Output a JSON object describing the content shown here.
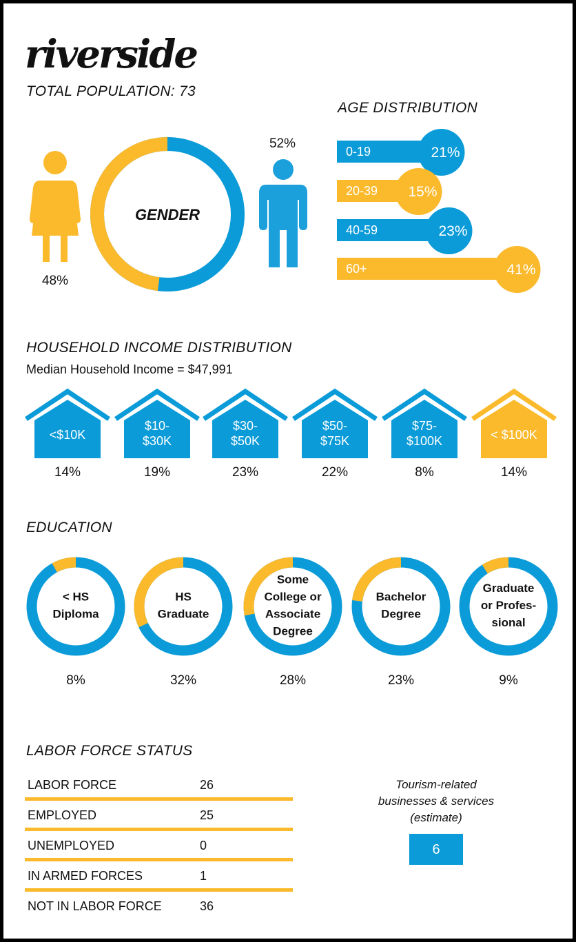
{
  "title": "riverside",
  "total_population_label": "TOTAL POPULATION: 73",
  "colors": {
    "blue": "#0a9bd8",
    "yellow": "#fbb92c"
  },
  "chart_data": [
    {
      "type": "pie",
      "title": "GENDER",
      "slices": [
        {
          "label": "female",
          "value": 48,
          "display": "48%",
          "color": "#fbb92c",
          "icon": "woman-icon"
        },
        {
          "label": "male",
          "value": 52,
          "display": "52%",
          "color": "#0a9bd8",
          "icon": "man-icon"
        }
      ]
    },
    {
      "type": "bar",
      "title": "AGE DISTRIBUTION",
      "categories": [
        "0-19",
        "20-39",
        "40-59",
        "60+"
      ],
      "values": [
        21,
        15,
        23,
        41
      ],
      "labels": [
        "21%",
        "15%",
        "23%",
        "41%"
      ],
      "colors": [
        "#0a9bd8",
        "#fbb92c",
        "#0a9bd8",
        "#fbb92c"
      ]
    },
    {
      "type": "bar",
      "title": "HOUSEHOLD INCOME DISTRIBUTION",
      "subtitle": "Median Household Income = $47,991",
      "categories": [
        "<$10K",
        "$10-\n$30K",
        "$30-\n$50K",
        "$50-\n$75K",
        "$75-\n$100K",
        "< $100K"
      ],
      "values": [
        14,
        19,
        23,
        22,
        8,
        14
      ],
      "labels": [
        "14%",
        "19%",
        "23%",
        "22%",
        "8%",
        "14%"
      ],
      "colors": [
        "#0a9bd8",
        "#0a9bd8",
        "#0a9bd8",
        "#0a9bd8",
        "#0a9bd8",
        "#fbb92c"
      ],
      "icon": "house-icon"
    },
    {
      "type": "pie",
      "title": "EDUCATION",
      "categories": [
        "< HS\nDiploma",
        "HS\nGraduate",
        "Some\nCollege or\nAssociate\nDegree",
        "Bachelor\nDegree",
        "Graduate\nor Profes-\nsional"
      ],
      "values": [
        8,
        32,
        28,
        23,
        9
      ],
      "labels": [
        "8%",
        "32%",
        "28%",
        "23%",
        "9%"
      ]
    }
  ],
  "labor": {
    "title": "LABOR FORCE STATUS",
    "rows": [
      {
        "label": "LABOR FORCE",
        "value": "26"
      },
      {
        "label": "EMPLOYED",
        "value": "25"
      },
      {
        "label": "UNEMPLOYED",
        "value": "0"
      },
      {
        "label": "IN ARMED FORCES",
        "value": "1"
      },
      {
        "label": "NOT IN LABOR FORCE",
        "value": "36"
      }
    ]
  },
  "tourism": {
    "label": "Tourism-related\nbusinesses & services\n(estimate)",
    "value": "6"
  }
}
